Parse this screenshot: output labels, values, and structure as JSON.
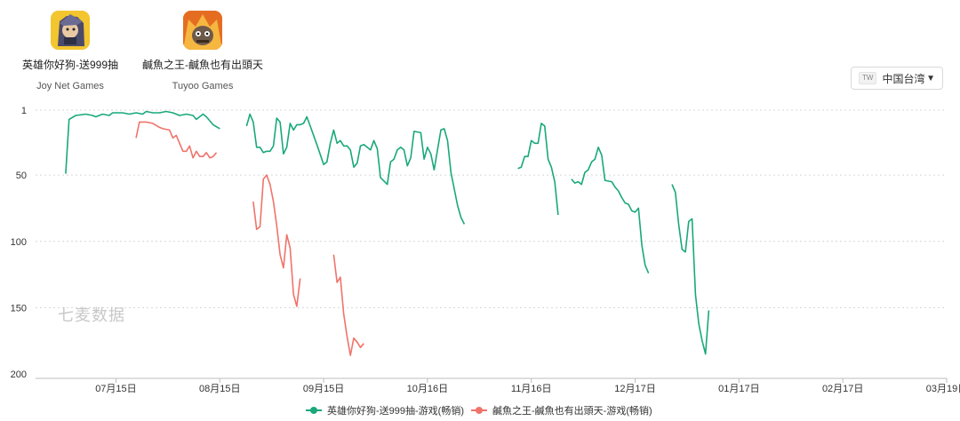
{
  "apps": [
    {
      "name": "英雄你好狗-送999抽",
      "developer": "Joy Net Games",
      "icon": "dog-hero-app-icon"
    },
    {
      "name": "鹹魚之王-鹹魚也有出頭天",
      "developer": "Tuyoo Games",
      "icon": "salted-fish-king-app-icon"
    }
  ],
  "region": {
    "flag": "TW",
    "label": "中国台湾",
    "caret": "▼"
  },
  "watermark": "七麦数据",
  "colors": {
    "series1": "#19a87b",
    "series2": "#f0736a",
    "grid": "#d6d6d6"
  },
  "chart_data": {
    "type": "line",
    "yaxis_inverted": true,
    "ylim": [
      1,
      200
    ],
    "yticks": [
      1,
      50,
      100,
      150,
      200
    ],
    "xlim": [
      "2023-06-21",
      "2024-03-19"
    ],
    "xticks": [
      {
        "date": "2023-07-15",
        "label": "07月15日"
      },
      {
        "date": "2023-08-15",
        "label": "08月15日"
      },
      {
        "date": "2023-09-15",
        "label": "09月15日"
      },
      {
        "date": "2023-10-16",
        "label": "10月16日"
      },
      {
        "date": "2023-11-16",
        "label": "11月16日"
      },
      {
        "date": "2023-12-17",
        "label": "12月17日"
      },
      {
        "date": "2024-01-17",
        "label": "01月17日"
      },
      {
        "date": "2024-02-17",
        "label": "02月17日"
      },
      {
        "date": "2024-03-19",
        "label": "03月19日"
      }
    ],
    "grid": true,
    "legend_position": "bottom",
    "series": [
      {
        "name": "英雄你好狗-送999抽-游戏(畅销)",
        "color": "#19a87b",
        "segments": [
          [
            [
              "2023-06-30",
              49
            ],
            [
              "2023-07-01",
              8
            ],
            [
              "2023-07-03",
              5
            ],
            [
              "2023-07-06",
              4
            ],
            [
              "2023-07-08",
              5
            ],
            [
              "2023-07-09",
              6
            ],
            [
              "2023-07-11",
              4
            ],
            [
              "2023-07-13",
              5
            ],
            [
              "2023-07-14",
              3
            ],
            [
              "2023-07-17",
              3
            ],
            [
              "2023-07-19",
              4
            ],
            [
              "2023-07-21",
              3
            ],
            [
              "2023-07-23",
              4
            ],
            [
              "2023-07-24",
              2
            ],
            [
              "2023-07-26",
              3
            ],
            [
              "2023-07-28",
              3
            ],
            [
              "2023-07-30",
              2
            ],
            [
              "2023-08-01",
              3
            ],
            [
              "2023-08-03",
              5
            ],
            [
              "2023-08-05",
              4
            ],
            [
              "2023-08-07",
              5
            ],
            [
              "2023-08-08",
              8
            ],
            [
              "2023-08-10",
              4
            ],
            [
              "2023-08-11",
              6
            ],
            [
              "2023-08-13",
              12
            ],
            [
              "2023-08-15",
              15
            ]
          ],
          [
            [
              "2023-08-23",
              13
            ],
            [
              "2023-08-24",
              4
            ],
            [
              "2023-08-25",
              10
            ],
            [
              "2023-08-26",
              29
            ],
            [
              "2023-08-27",
              29
            ],
            [
              "2023-08-28",
              33
            ],
            [
              "2023-08-29",
              32
            ],
            [
              "2023-08-30",
              32
            ],
            [
              "2023-08-31",
              28
            ],
            [
              "2023-09-01",
              7
            ],
            [
              "2023-09-02",
              10
            ],
            [
              "2023-09-03",
              34
            ],
            [
              "2023-09-04",
              29
            ],
            [
              "2023-09-05",
              11
            ],
            [
              "2023-09-06",
              16
            ],
            [
              "2023-09-07",
              12
            ],
            [
              "2023-09-08",
              12
            ],
            [
              "2023-09-09",
              11
            ],
            [
              "2023-09-10",
              6
            ],
            [
              "2023-09-11",
              13
            ],
            [
              "2023-09-13",
              27
            ],
            [
              "2023-09-15",
              42
            ],
            [
              "2023-09-16",
              40
            ],
            [
              "2023-09-17",
              26
            ],
            [
              "2023-09-18",
              16
            ],
            [
              "2023-09-19",
              26
            ],
            [
              "2023-09-20",
              24
            ],
            [
              "2023-09-21",
              28
            ],
            [
              "2023-09-22",
              28
            ],
            [
              "2023-09-23",
              31
            ],
            [
              "2023-09-24",
              44
            ],
            [
              "2023-09-25",
              41
            ],
            [
              "2023-09-26",
              28
            ],
            [
              "2023-09-27",
              27
            ],
            [
              "2023-09-29",
              31
            ],
            [
              "2023-09-30",
              24
            ],
            [
              "2023-10-01",
              30
            ],
            [
              "2023-10-02",
              52
            ],
            [
              "2023-10-04",
              57
            ],
            [
              "2023-10-05",
              40
            ],
            [
              "2023-10-06",
              38
            ],
            [
              "2023-10-07",
              31
            ],
            [
              "2023-10-08",
              29
            ],
            [
              "2023-10-09",
              31
            ],
            [
              "2023-10-10",
              43
            ],
            [
              "2023-10-11",
              37
            ],
            [
              "2023-10-12",
              17
            ],
            [
              "2023-10-14",
              18
            ],
            [
              "2023-10-15",
              38
            ],
            [
              "2023-10-16",
              29
            ],
            [
              "2023-10-17",
              34
            ],
            [
              "2023-10-18",
              46
            ],
            [
              "2023-10-19",
              31
            ],
            [
              "2023-10-20",
              16
            ],
            [
              "2023-10-21",
              15
            ],
            [
              "2023-10-22",
              24
            ],
            [
              "2023-10-23",
              48
            ],
            [
              "2023-10-25",
              73
            ],
            [
              "2023-10-26",
              82
            ],
            [
              "2023-10-27",
              87
            ]
          ],
          [
            [
              "2023-11-12",
              45
            ],
            [
              "2023-11-13",
              44
            ],
            [
              "2023-11-14",
              36
            ],
            [
              "2023-11-15",
              36
            ],
            [
              "2023-11-16",
              24
            ],
            [
              "2023-11-17",
              26
            ],
            [
              "2023-11-18",
              26
            ],
            [
              "2023-11-19",
              11
            ],
            [
              "2023-11-20",
              13
            ],
            [
              "2023-11-21",
              38
            ],
            [
              "2023-11-22",
              44
            ],
            [
              "2023-11-23",
              55
            ],
            [
              "2023-11-24",
              80
            ]
          ],
          [
            [
              "2023-11-28",
              53
            ],
            [
              "2023-11-29",
              56
            ],
            [
              "2023-11-30",
              55
            ],
            [
              "2023-12-01",
              57
            ],
            [
              "2023-12-02",
              48
            ],
            [
              "2023-12-03",
              46
            ],
            [
              "2023-12-04",
              40
            ],
            [
              "2023-12-05",
              38
            ],
            [
              "2023-12-06",
              29
            ],
            [
              "2023-12-07",
              35
            ],
            [
              "2023-12-08",
              54
            ],
            [
              "2023-12-10",
              55
            ],
            [
              "2023-12-11",
              59
            ],
            [
              "2023-12-12",
              62
            ],
            [
              "2023-12-13",
              67
            ],
            [
              "2023-12-14",
              71
            ],
            [
              "2023-12-15",
              72
            ],
            [
              "2023-12-16",
              77
            ],
            [
              "2023-12-17",
              78
            ],
            [
              "2023-12-18",
              75
            ],
            [
              "2023-12-19",
              103
            ],
            [
              "2023-12-20",
              118
            ],
            [
              "2023-12-21",
              124
            ]
          ],
          [
            [
              "2023-12-28",
              57
            ],
            [
              "2023-12-29",
              63
            ],
            [
              "2023-12-30",
              87
            ],
            [
              "2023-12-31",
              106
            ],
            [
              "2024-01-01",
              108
            ],
            [
              "2024-01-02",
              85
            ],
            [
              "2024-01-03",
              83
            ],
            [
              "2024-01-04",
              140
            ],
            [
              "2024-01-05",
              162
            ],
            [
              "2024-01-06",
              175
            ],
            [
              "2024-01-07",
              185
            ],
            [
              "2024-01-08",
              152
            ]
          ]
        ]
      },
      {
        "name": "鹹魚之王-鹹魚也有出頭天-游戏(畅销)",
        "color": "#f0736a",
        "segments": [
          [
            [
              "2023-07-21",
              22
            ],
            [
              "2023-07-22",
              10
            ],
            [
              "2023-07-24",
              10
            ],
            [
              "2023-07-26",
              11
            ],
            [
              "2023-07-28",
              14
            ],
            [
              "2023-07-29",
              15
            ],
            [
              "2023-07-31",
              16
            ],
            [
              "2023-08-01",
              22
            ],
            [
              "2023-08-02",
              20
            ],
            [
              "2023-08-04",
              32
            ],
            [
              "2023-08-05",
              32
            ],
            [
              "2023-08-06",
              28
            ],
            [
              "2023-08-07",
              37
            ],
            [
              "2023-08-08",
              32
            ],
            [
              "2023-08-09",
              36
            ],
            [
              "2023-08-10",
              36
            ],
            [
              "2023-08-11",
              33
            ],
            [
              "2023-08-12",
              37
            ],
            [
              "2023-08-13",
              36
            ],
            [
              "2023-08-14",
              33
            ]
          ],
          [
            [
              "2023-08-25",
              70
            ],
            [
              "2023-08-26",
              91
            ],
            [
              "2023-08-27",
              89
            ],
            [
              "2023-08-28",
              53
            ],
            [
              "2023-08-29",
              50
            ],
            [
              "2023-08-30",
              57
            ],
            [
              "2023-08-31",
              70
            ],
            [
              "2023-09-01",
              88
            ],
            [
              "2023-09-02",
              110
            ],
            [
              "2023-09-03",
              120
            ],
            [
              "2023-09-04",
              95
            ],
            [
              "2023-09-05",
              105
            ],
            [
              "2023-09-06",
              140
            ],
            [
              "2023-09-07",
              149
            ],
            [
              "2023-09-08",
              128
            ]
          ],
          [
            [
              "2023-09-18",
              110
            ],
            [
              "2023-09-19",
              131
            ],
            [
              "2023-09-20",
              127
            ],
            [
              "2023-09-21",
              155
            ],
            [
              "2023-09-22",
              172
            ],
            [
              "2023-09-23",
              186
            ],
            [
              "2023-09-24",
              173
            ],
            [
              "2023-09-25",
              176
            ],
            [
              "2023-09-26",
              180
            ],
            [
              "2023-09-27",
              177
            ]
          ]
        ]
      }
    ]
  }
}
